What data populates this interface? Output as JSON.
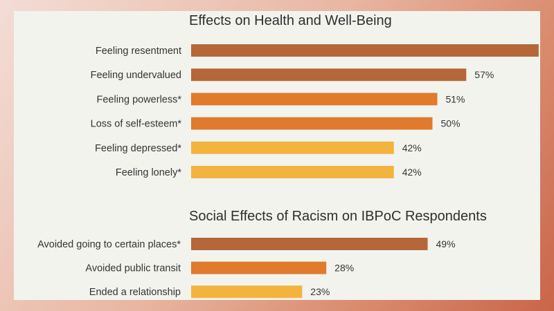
{
  "chart_data": [
    {
      "type": "bar",
      "orientation": "horizontal",
      "title": "Effects on Health and Well-Being",
      "categories": [
        "Feeling resentment",
        "Feeling undervalued",
        "Feeling powerless*",
        "Loss of self-esteem*",
        "Feeling depressed*",
        "Feeling lonely*"
      ],
      "values": [
        72,
        57,
        51,
        50,
        42,
        42
      ],
      "value_labels": [
        "",
        "57%",
        "51%",
        "50%",
        "42%",
        "42%"
      ],
      "colors": [
        "#b5673a",
        "#b5673a",
        "#e07a2c",
        "#e07a2c",
        "#f2b43e",
        "#f2b43e"
      ],
      "xlim": [
        0,
        100
      ],
      "grid": false
    },
    {
      "type": "bar",
      "orientation": "horizontal",
      "title": "Social Effects of Racism on IBPoC Respondents",
      "categories": [
        "Avoided going to certain places*",
        "Avoided public transit",
        "Ended a relationship"
      ],
      "values": [
        49,
        28,
        23
      ],
      "value_labels": [
        "49%",
        "28%",
        "23%"
      ],
      "colors": [
        "#b5673a",
        "#e07a2c",
        "#f2b43e"
      ],
      "xlim": [
        0,
        100
      ],
      "grid": false
    }
  ]
}
